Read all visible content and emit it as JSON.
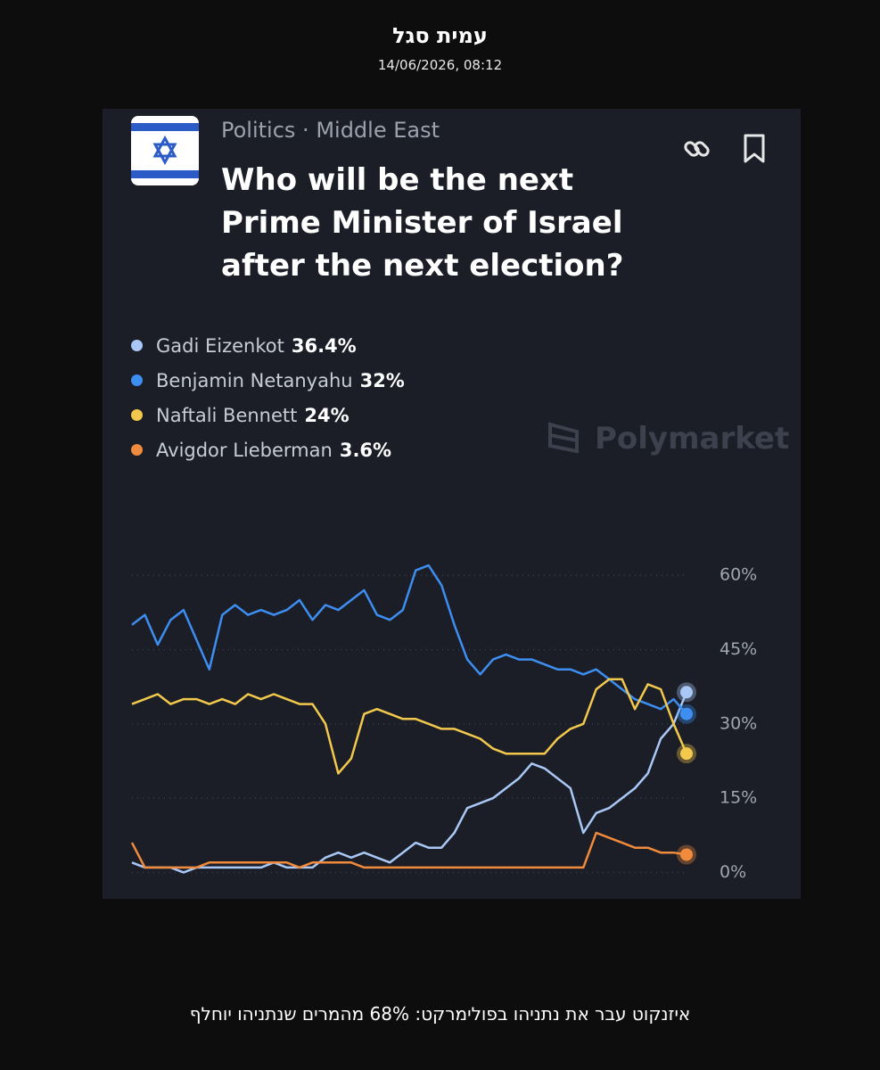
{
  "header": {
    "author": "עמית סגל",
    "timestamp": "14/06/2026, 08:12"
  },
  "card": {
    "category": "Politics",
    "subcategory": "Middle East",
    "question": "Who will be the next Prime Minister of Israel after the next election?",
    "watermark": "Polymarket"
  },
  "chart_data": {
    "type": "line",
    "ylim": [
      -1,
      64
    ],
    "yticks": [
      {
        "value": 0,
        "label": "0%"
      },
      {
        "value": 15,
        "label": "15%"
      },
      {
        "value": 30,
        "label": "30%"
      },
      {
        "value": 45,
        "label": "45%"
      },
      {
        "value": 60,
        "label": "60%"
      }
    ],
    "grid": true,
    "series": [
      {
        "name": "Gadi Eizenkot",
        "color": "#a9c8f5",
        "current": {
          "value": 36.4,
          "label": "36.4%"
        },
        "values": [
          2,
          1,
          1,
          1,
          0,
          1,
          1,
          1,
          1,
          1,
          1,
          2,
          1,
          1,
          1,
          3,
          4,
          3,
          4,
          3,
          2,
          4,
          6,
          5,
          5,
          8,
          13,
          14,
          15,
          17,
          19,
          22,
          21,
          19,
          17,
          8,
          12,
          13,
          15,
          17,
          20,
          27,
          30,
          36.4
        ]
      },
      {
        "name": "Benjamin Netanyahu",
        "color": "#3d8ef0",
        "current": {
          "value": 32,
          "label": "32%"
        },
        "values": [
          50,
          52,
          46,
          51,
          53,
          47,
          41,
          52,
          54,
          52,
          53,
          52,
          53,
          55,
          51,
          54,
          53,
          55,
          57,
          52,
          51,
          53,
          61,
          62,
          58,
          50,
          43,
          40,
          43,
          44,
          43,
          43,
          42,
          41,
          41,
          40,
          41,
          39,
          37,
          35,
          34,
          33,
          35,
          32
        ]
      },
      {
        "name": "Naftali Bennett",
        "color": "#f2c94c",
        "current": {
          "value": 24,
          "label": "24%"
        },
        "values": [
          34,
          35,
          36,
          34,
          35,
          35,
          34,
          35,
          34,
          36,
          35,
          36,
          35,
          34,
          34,
          30,
          20,
          23,
          32,
          33,
          32,
          31,
          31,
          30,
          29,
          29,
          28,
          27,
          25,
          24,
          24,
          24,
          24,
          27,
          29,
          30,
          37,
          39,
          39,
          33,
          38,
          37,
          30,
          24
        ]
      },
      {
        "name": "Avigdor Lieberman",
        "color": "#f08a3c",
        "current": {
          "value": 3.6,
          "label": "3.6%"
        },
        "values": [
          6,
          1,
          1,
          1,
          1,
          1,
          2,
          2,
          2,
          2,
          2,
          2,
          2,
          1,
          2,
          2,
          2,
          2,
          1,
          1,
          1,
          1,
          1,
          1,
          1,
          1,
          1,
          1,
          1,
          1,
          1,
          1,
          1,
          1,
          1,
          1,
          8,
          7,
          6,
          5,
          5,
          4,
          4,
          3.6
        ]
      }
    ]
  },
  "caption": "איזנקוט עבר את נתניהו בפולימרקט: 68% מהמרים שנתניהו יוחלף"
}
